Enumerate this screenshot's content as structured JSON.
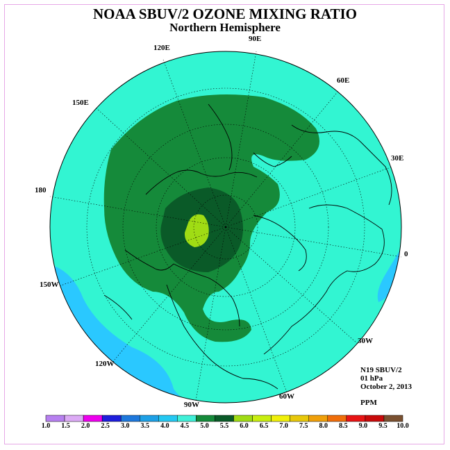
{
  "title": "NOAA SBUV/2 OZONE MIXING RATIO",
  "subtitle": "Northern Hemisphere",
  "longitude_labels": {
    "e90": "90E",
    "e120": "120E",
    "e60": "60E",
    "e150": "150E",
    "e30": "30E",
    "w180": "180",
    "zero": "0",
    "w150": "150W",
    "w30": "30W",
    "w120": "120W",
    "w60": "60W",
    "w90": "90W"
  },
  "info": {
    "instrument": "N19 SBUV/2",
    "level": "01 hPa",
    "date": "October 2, 2013",
    "units": "PPM"
  },
  "colorbar": {
    "ticks": [
      "1.0",
      "1.5",
      "2.0",
      "2.5",
      "3.0",
      "3.5",
      "4.0",
      "4.5",
      "5.0",
      "5.5",
      "6.0",
      "6.5",
      "7.0",
      "7.5",
      "8.0",
      "8.5",
      "9.0",
      "9.5",
      "10.0"
    ],
    "colors": [
      "#b780f0",
      "#dcaaf5",
      "#ee00ee",
      "#1e1edc",
      "#1e78dc",
      "#1ea0e6",
      "#24c8f2",
      "#40f0d8",
      "#158a3a",
      "#0a5a28",
      "#a0dc14",
      "#c8ee10",
      "#f0f00a",
      "#e8c80a",
      "#f0a00a",
      "#f06e0a",
      "#e81414",
      "#c80a0a",
      "#7a5030"
    ]
  },
  "map": {
    "ocean_color": "#32f5d2",
    "low_color": "#2ac8ff",
    "high_color": "#158a3a",
    "peak_color": "#0a5a28",
    "max_color": "#a0dc14"
  }
}
